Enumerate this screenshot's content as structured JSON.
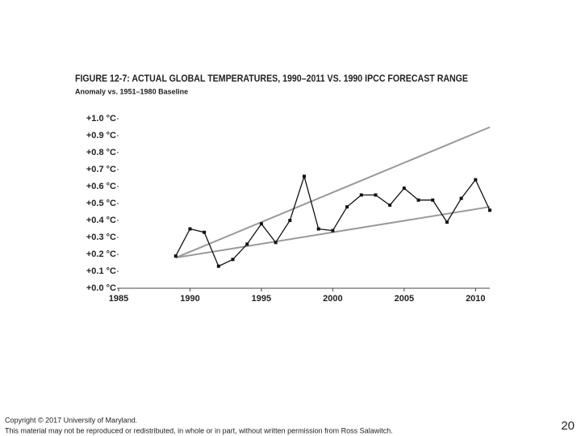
{
  "chart_data": {
    "type": "line",
    "title": "FIGURE 12-7: ACTUAL GLOBAL TEMPERATURES, 1990–2011 VS. 1990 IPCC FORECAST RANGE",
    "subtitle": "Anomaly vs. 1951–1980 Baseline",
    "xlim": [
      1985,
      2011
    ],
    "xticks": [
      1985,
      1990,
      1995,
      2000,
      2005,
      2010
    ],
    "ylim": [
      0,
      1.0
    ],
    "yticks": [
      {
        "value": 0.0,
        "label": "+0.0 °C"
      },
      {
        "value": 0.1,
        "label": "+0.1 °C"
      },
      {
        "value": 0.2,
        "label": "+0.2 °C"
      },
      {
        "value": 0.3,
        "label": "+0.3 °C"
      },
      {
        "value": 0.4,
        "label": "+0.4 °C"
      },
      {
        "value": 0.5,
        "label": "+0.5 °C"
      },
      {
        "value": 0.6,
        "label": "+0.6 °C"
      },
      {
        "value": 0.7,
        "label": "+0.7 °C"
      },
      {
        "value": 0.8,
        "label": "+0.8 °C"
      },
      {
        "value": 0.9,
        "label": "+0.9 °C"
      },
      {
        "value": 1.0,
        "label": "+1.0 °C"
      }
    ],
    "series": [
      {
        "color": "#999999",
        "x": [
          1989,
          2011
        ],
        "values": [
          0.18,
          0.95
        ]
      },
      {
        "color": "#999999",
        "x": [
          1989,
          2011
        ],
        "values": [
          0.18,
          0.48
        ]
      },
      {
        "color": "#111111",
        "markers": true,
        "x": [
          1989,
          1990,
          1991,
          1992,
          1993,
          1994,
          1995,
          1996,
          1997,
          1998,
          1999,
          2000,
          2001,
          2002,
          2003,
          2004,
          2005,
          2006,
          2007,
          2008,
          2009,
          2010,
          2011
        ],
        "values": [
          0.19,
          0.35,
          0.33,
          0.13,
          0.17,
          0.26,
          0.38,
          0.27,
          0.4,
          0.66,
          0.35,
          0.34,
          0.48,
          0.55,
          0.55,
          0.49,
          0.59,
          0.52,
          0.52,
          0.39,
          0.53,
          0.64,
          0.46
        ]
      }
    ]
  },
  "footer": {
    "copyright": "Copyright © 2017 University of Maryland.",
    "notice": "This material may not be reproduced or redistributed, in whole or in part, without written permission from Ross Salawitch.",
    "page": "20"
  }
}
